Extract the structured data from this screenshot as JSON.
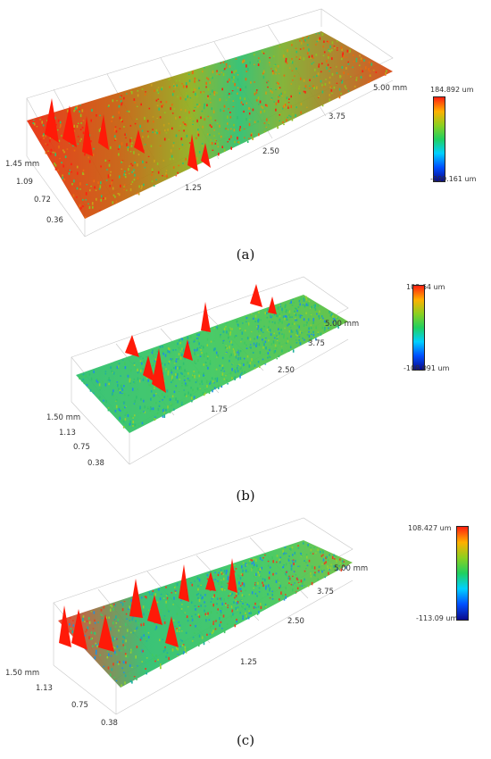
{
  "panels": [
    {
      "caption": "(a)",
      "colorbar_max": "184.892 um",
      "colorbar_min": "-209.161 um",
      "depth_ticks": [
        "1.45 mm",
        "1.09",
        "0.72",
        "0.36"
      ],
      "length_ticks": [
        "1.25",
        "2.50",
        "3.75",
        "5.00 mm"
      ]
    },
    {
      "caption": "(b)",
      "colorbar_max": "103.64 um",
      "colorbar_min": "-108.091 um",
      "depth_ticks": [
        "1.50 mm",
        "1.13",
        "0.75",
        "0.38"
      ],
      "length_ticks": [
        "1.75",
        "2.50",
        "3.75",
        "5.00 mm"
      ]
    },
    {
      "caption": "(c)",
      "colorbar_max": "108.427 um",
      "colorbar_min": "-113.09 um",
      "depth_ticks": [
        "1.50 mm",
        "1.13",
        "0.75",
        "0.38"
      ],
      "length_ticks": [
        "1.25",
        "2.50",
        "3.75",
        "5.00 mm"
      ]
    }
  ],
  "colors": {
    "scale": [
      "#0a0a8c",
      "#0050ff",
      "#00d0ff",
      "#20d060",
      "#8cd020",
      "#ffb000",
      "#ff2010"
    ],
    "grid": "#c8c8c8"
  }
}
